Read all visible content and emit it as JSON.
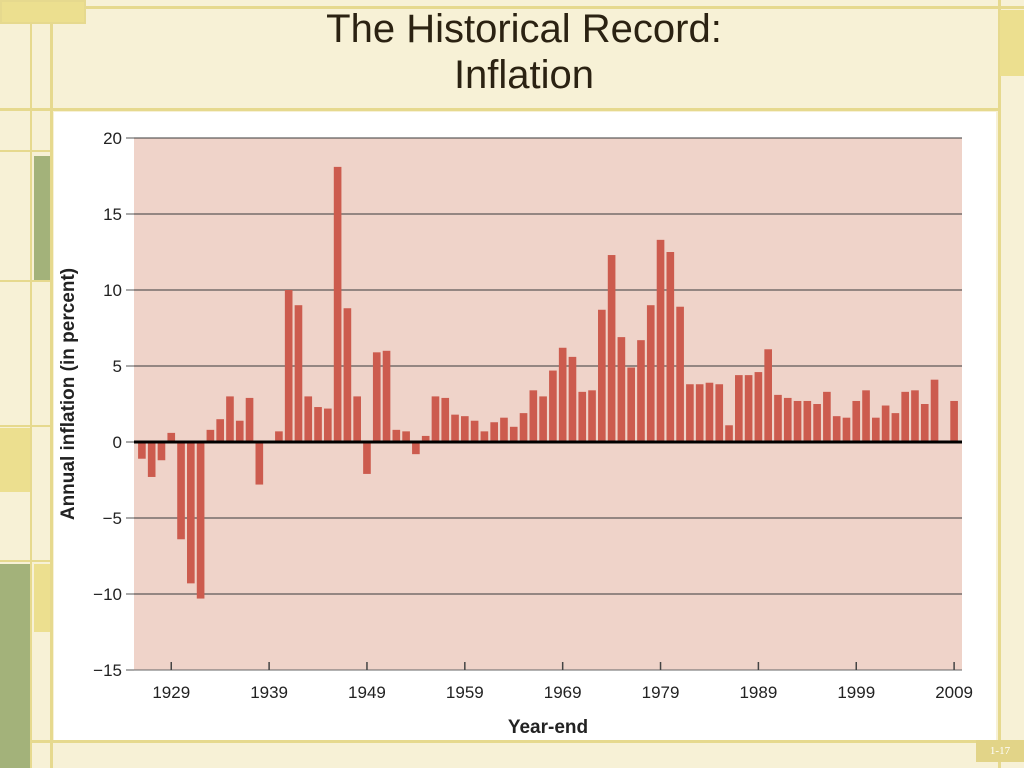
{
  "slide": {
    "title_line1": "The Historical Record:",
    "title_line2": "Inflation",
    "slide_number": "1-17"
  },
  "colors": {
    "background": "#f7f1d6",
    "frame_line": "#e6d98e",
    "accent_green": "#a3b27a",
    "accent_yellow": "#ecdf8f",
    "plot_background": "#efd3c9",
    "bar": "#cc5b4e",
    "zero_line": "#000000",
    "gridline": "#3a3a3a"
  },
  "chart_data": {
    "type": "bar",
    "title": "",
    "xlabel": "Year-end",
    "ylabel": "Annual inflation (in percent)",
    "ylim": [
      -15,
      20
    ],
    "yticks": [
      20,
      15,
      10,
      5,
      0,
      -5,
      -10,
      -15
    ],
    "ytick_labels": [
      "20",
      "15",
      "10",
      "5",
      "0",
      "−5",
      "−10",
      "−15"
    ],
    "xticks": [
      1929,
      1939,
      1949,
      1959,
      1969,
      1979,
      1989,
      1999,
      2009
    ],
    "grid": true,
    "x": [
      1926,
      1927,
      1928,
      1929,
      1930,
      1931,
      1932,
      1933,
      1934,
      1935,
      1936,
      1937,
      1938,
      1939,
      1940,
      1941,
      1942,
      1943,
      1944,
      1945,
      1946,
      1947,
      1948,
      1949,
      1950,
      1951,
      1952,
      1953,
      1954,
      1955,
      1956,
      1957,
      1958,
      1959,
      1960,
      1961,
      1962,
      1963,
      1964,
      1965,
      1966,
      1967,
      1968,
      1969,
      1970,
      1971,
      1972,
      1973,
      1974,
      1975,
      1976,
      1977,
      1978,
      1979,
      1980,
      1981,
      1982,
      1983,
      1984,
      1985,
      1986,
      1987,
      1988,
      1989,
      1990,
      1991,
      1992,
      1993,
      1994,
      1995,
      1996,
      1997,
      1998,
      1999,
      2000,
      2001,
      2002,
      2003,
      2004,
      2005,
      2006,
      2007,
      2008,
      2009
    ],
    "values": [
      -1.1,
      -2.3,
      -1.2,
      0.6,
      -6.4,
      -9.3,
      -10.3,
      0.8,
      1.5,
      3.0,
      1.4,
      2.9,
      -2.8,
      0.0,
      0.7,
      10.0,
      9.0,
      3.0,
      2.3,
      2.2,
      18.1,
      8.8,
      3.0,
      -2.1,
      5.9,
      6.0,
      0.8,
      0.7,
      -0.8,
      0.4,
      3.0,
      2.9,
      1.8,
      1.7,
      1.4,
      0.7,
      1.3,
      1.6,
      1.0,
      1.9,
      3.4,
      3.0,
      4.7,
      6.2,
      5.6,
      3.3,
      3.4,
      8.7,
      12.3,
      6.9,
      4.9,
      6.7,
      9.0,
      13.3,
      12.5,
      8.9,
      3.8,
      3.8,
      3.9,
      3.8,
      1.1,
      4.4,
      4.4,
      4.6,
      6.1,
      3.1,
      2.9,
      2.7,
      2.7,
      2.5,
      3.3,
      1.7,
      1.6,
      2.7,
      3.4,
      1.6,
      2.4,
      1.9,
      3.3,
      3.4,
      2.5,
      4.1,
      0.1,
      2.7
    ]
  }
}
